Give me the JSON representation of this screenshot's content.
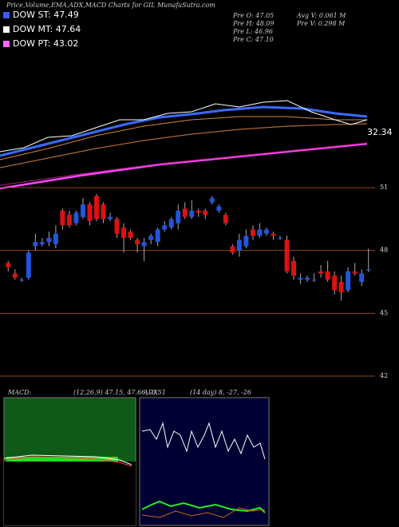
{
  "header": {
    "title": "Price,Volume,EMA,ADX,MACD Charts for GIL MunafaSutra.com",
    "legend": [
      "DOW ST: 47.49",
      "DOW MT: 47.64",
      "DOW PT: 43.02"
    ],
    "info_left": [
      "Pre  O: 47.05",
      "Pre  H: 48.09",
      "Pre  L: 46.96",
      "Pre  C: 47.10"
    ],
    "info_right": [
      "Avg V: 0.061 M",
      "Pre  V: 0.298 M"
    ],
    "ema_label": "32.34"
  },
  "chart_data": {
    "type": "candlestick",
    "open": [
      47.4,
      46.9,
      46.6,
      46.7,
      48.2,
      48.3,
      48.4,
      48.3,
      49.9,
      49.7,
      49.3,
      49.6,
      50.2,
      50.6,
      50.2,
      49.5,
      49.5,
      49.1,
      48.9,
      48.5,
      48.2,
      48.5,
      48.4,
      49.0,
      49.1,
      49.3,
      50.0,
      49.6,
      49.9,
      49.9,
      50.3,
      49.9,
      49.7,
      48.2,
      48.0,
      48.2,
      49.0,
      48.7,
      48.8,
      48.8,
      48.6,
      48.5,
      47.5,
      46.6,
      46.6,
      46.6,
      47.0,
      47.0,
      46.8,
      46.5,
      46.1,
      47.0,
      46.5,
      47.05
    ],
    "high": [
      47.5,
      47.1,
      46.7,
      48.0,
      48.8,
      48.6,
      48.9,
      49.2,
      50.0,
      49.9,
      49.9,
      50.5,
      50.3,
      50.7,
      50.3,
      49.8,
      49.6,
      49.3,
      49.0,
      48.6,
      48.6,
      48.8,
      49.1,
      49.4,
      49.6,
      50.2,
      50.3,
      50.4,
      50.0,
      50.0,
      50.6,
      50.2,
      49.8,
      48.3,
      48.8,
      49.0,
      49.2,
      49.3,
      49.1,
      48.9,
      48.7,
      48.7,
      47.7,
      46.9,
      46.8,
      46.9,
      47.3,
      47.5,
      47.0,
      46.8,
      47.2,
      47.4,
      47.1,
      48.09
    ],
    "low": [
      47.0,
      46.6,
      46.5,
      46.6,
      48.0,
      48.2,
      48.2,
      48.1,
      49.0,
      49.1,
      49.2,
      49.5,
      49.2,
      49.4,
      49.3,
      49.4,
      48.6,
      47.9,
      48.5,
      47.9,
      47.5,
      48.3,
      48.2,
      48.9,
      49.0,
      49.0,
      49.5,
      49.5,
      49.6,
      49.5,
      50.2,
      49.8,
      49.2,
      47.8,
      47.7,
      48.1,
      48.5,
      48.6,
      48.7,
      48.5,
      48.5,
      46.9,
      46.6,
      46.4,
      46.5,
      46.5,
      46.7,
      46.5,
      45.9,
      45.6,
      46.0,
      46.8,
      46.3,
      46.96
    ],
    "close": [
      47.2,
      46.7,
      46.6,
      47.9,
      48.4,
      48.4,
      48.6,
      48.8,
      49.2,
      49.2,
      49.8,
      50.2,
      49.4,
      49.5,
      49.5,
      49.6,
      48.8,
      48.6,
      48.6,
      48.3,
      48.4,
      48.7,
      49.0,
      49.2,
      49.5,
      49.9,
      49.6,
      49.9,
      49.8,
      49.7,
      50.5,
      50.1,
      49.3,
      47.9,
      48.5,
      48.7,
      48.7,
      49.0,
      49.0,
      48.7,
      48.6,
      47.0,
      46.8,
      46.7,
      46.7,
      46.6,
      46.9,
      46.6,
      46.1,
      46.0,
      47.0,
      46.9,
      46.9,
      47.1
    ],
    "up_color": "#2255dd",
    "down_color": "#dd1111",
    "ylim": [
      42,
      51
    ],
    "yticks": [
      51,
      48,
      45,
      42
    ],
    "grid": true,
    "grid_color": "#8a4a22"
  },
  "macd": {
    "label": "MACD:",
    "params": "(12,26,9) 47.15, 47.66, -0.51"
  },
  "adx": {
    "label": "ADX",
    "params": "(14 day) 8, -27, -26"
  }
}
